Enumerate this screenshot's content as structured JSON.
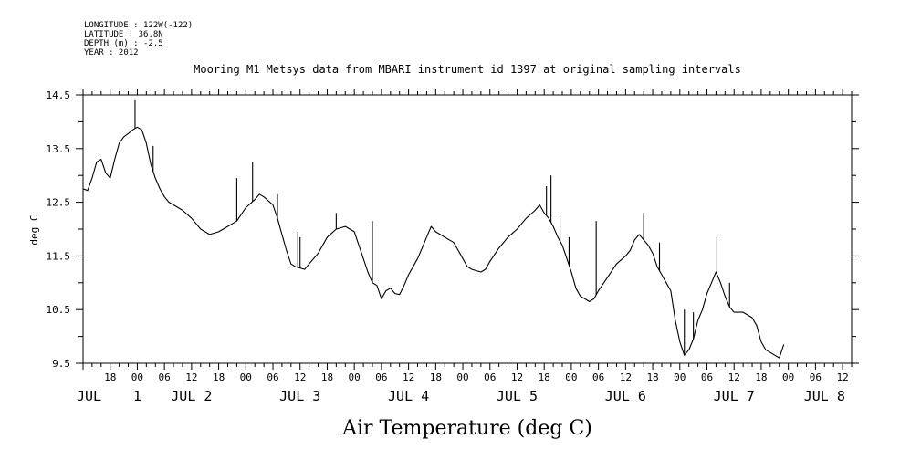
{
  "header": {
    "lines": [
      "LONGITUDE : 122W(-122)",
      "LATITUDE : 36.8N",
      "DEPTH (m) : -2.5",
      "YEAR : 2012"
    ]
  },
  "chart_data": {
    "type": "line",
    "title": "Mooring M1 Metsys data from MBARI instrument id 1397 at original sampling intervals",
    "xlabel": "Air Temperature (deg C)",
    "ylabel": "deg C",
    "ylim": [
      9.5,
      14.5
    ],
    "yticks": [
      9.5,
      10.5,
      11.5,
      12.5,
      13.5,
      14.5
    ],
    "ytick_labels": [
      "9.5",
      "10.5",
      "11.5",
      "12.5",
      "13.5",
      "14.5"
    ],
    "xlim_hours": [
      -12,
      158
    ],
    "hour_ticks": [
      {
        "h": -6,
        "label": "18"
      },
      {
        "h": 0,
        "label": "00"
      },
      {
        "h": 6,
        "label": "06"
      },
      {
        "h": 12,
        "label": "12"
      },
      {
        "h": 18,
        "label": "18"
      },
      {
        "h": 24,
        "label": "00"
      },
      {
        "h": 30,
        "label": "06"
      },
      {
        "h": 36,
        "label": "12"
      },
      {
        "h": 42,
        "label": "18"
      },
      {
        "h": 48,
        "label": "00"
      },
      {
        "h": 54,
        "label": "06"
      },
      {
        "h": 60,
        "label": "12"
      },
      {
        "h": 66,
        "label": "18"
      },
      {
        "h": 72,
        "label": "00"
      },
      {
        "h": 78,
        "label": "06"
      },
      {
        "h": 84,
        "label": "12"
      },
      {
        "h": 90,
        "label": "18"
      },
      {
        "h": 96,
        "label": "00"
      },
      {
        "h": 102,
        "label": "06"
      },
      {
        "h": 108,
        "label": "12"
      },
      {
        "h": 114,
        "label": "18"
      },
      {
        "h": 120,
        "label": "00"
      },
      {
        "h": 126,
        "label": "06"
      },
      {
        "h": 132,
        "label": "12"
      },
      {
        "h": 138,
        "label": "18"
      },
      {
        "h": 144,
        "label": "00"
      },
      {
        "h": 150,
        "label": "06"
      },
      {
        "h": 156,
        "label": "12"
      }
    ],
    "day_labels": [
      {
        "h": -12,
        "label": "JUL"
      },
      {
        "h": 0,
        "label": "1"
      },
      {
        "h": 12,
        "label": "JUL 2"
      },
      {
        "h": 36,
        "label": "JUL 3"
      },
      {
        "h": 60,
        "label": "JUL 4"
      },
      {
        "h": 84,
        "label": "JUL 5"
      },
      {
        "h": 108,
        "label": "JUL 6"
      },
      {
        "h": 132,
        "label": "JUL 7"
      },
      {
        "h": 152,
        "label": "JUL 8"
      }
    ],
    "series": [
      {
        "color": "#000000",
        "points": [
          [
            -12,
            12.75
          ],
          [
            -11,
            12.72
          ],
          [
            -10,
            12.95
          ],
          [
            -9,
            13.25
          ],
          [
            -8,
            13.3
          ],
          [
            -7,
            13.05
          ],
          [
            -6,
            12.95
          ],
          [
            -5,
            13.3
          ],
          [
            -4,
            13.6
          ],
          [
            -3,
            13.72
          ],
          [
            -2,
            13.78
          ],
          [
            -1,
            13.85
          ],
          [
            0,
            13.9
          ],
          [
            1,
            13.85
          ],
          [
            2,
            13.6
          ],
          [
            3,
            13.2
          ],
          [
            4,
            12.95
          ],
          [
            5,
            12.75
          ],
          [
            6,
            12.6
          ],
          [
            7,
            12.5
          ],
          [
            8,
            12.45
          ],
          [
            10,
            12.35
          ],
          [
            12,
            12.2
          ],
          [
            14,
            12.0
          ],
          [
            16,
            11.9
          ],
          [
            18,
            11.95
          ],
          [
            20,
            12.05
          ],
          [
            22,
            12.15
          ],
          [
            24,
            12.4
          ],
          [
            26,
            12.55
          ],
          [
            27,
            12.65
          ],
          [
            28,
            12.6
          ],
          [
            30,
            12.45
          ],
          [
            31,
            12.2
          ],
          [
            32,
            11.9
          ],
          [
            33,
            11.6
          ],
          [
            34,
            11.35
          ],
          [
            35,
            11.3
          ],
          [
            37,
            11.25
          ],
          [
            38,
            11.35
          ],
          [
            40,
            11.55
          ],
          [
            42,
            11.85
          ],
          [
            44,
            12.0
          ],
          [
            46,
            12.05
          ],
          [
            48,
            11.95
          ],
          [
            49,
            11.7
          ],
          [
            50,
            11.45
          ],
          [
            51,
            11.2
          ],
          [
            52,
            11.0
          ],
          [
            53,
            10.95
          ],
          [
            54,
            10.7
          ],
          [
            55,
            10.85
          ],
          [
            56,
            10.9
          ],
          [
            57,
            10.8
          ],
          [
            58,
            10.78
          ],
          [
            59,
            10.95
          ],
          [
            60,
            11.15
          ],
          [
            62,
            11.45
          ],
          [
            63,
            11.65
          ],
          [
            64,
            11.85
          ],
          [
            65,
            12.05
          ],
          [
            66,
            11.95
          ],
          [
            67,
            11.9
          ],
          [
            68,
            11.85
          ],
          [
            69,
            11.8
          ],
          [
            70,
            11.75
          ],
          [
            71,
            11.6
          ],
          [
            72,
            11.45
          ],
          [
            73,
            11.3
          ],
          [
            74,
            11.25
          ],
          [
            76,
            11.2
          ],
          [
            77,
            11.25
          ],
          [
            78,
            11.4
          ],
          [
            80,
            11.65
          ],
          [
            82,
            11.85
          ],
          [
            84,
            12.0
          ],
          [
            86,
            12.2
          ],
          [
            88,
            12.35
          ],
          [
            89,
            12.45
          ],
          [
            90,
            12.3
          ],
          [
            91,
            12.2
          ],
          [
            92,
            12.05
          ],
          [
            93,
            11.85
          ],
          [
            94,
            11.7
          ],
          [
            95,
            11.45
          ],
          [
            96,
            11.2
          ],
          [
            97,
            10.9
          ],
          [
            98,
            10.75
          ],
          [
            99,
            10.7
          ],
          [
            100,
            10.65
          ],
          [
            101,
            10.7
          ],
          [
            102,
            10.85
          ],
          [
            104,
            11.1
          ],
          [
            106,
            11.35
          ],
          [
            108,
            11.5
          ],
          [
            109,
            11.6
          ],
          [
            110,
            11.8
          ],
          [
            111,
            11.9
          ],
          [
            112,
            11.8
          ],
          [
            113,
            11.7
          ],
          [
            114,
            11.55
          ],
          [
            115,
            11.3
          ],
          [
            116,
            11.15
          ],
          [
            117,
            11.0
          ],
          [
            118,
            10.85
          ],
          [
            119,
            10.3
          ],
          [
            120,
            9.9
          ],
          [
            121,
            9.65
          ],
          [
            122,
            9.75
          ],
          [
            123,
            9.95
          ],
          [
            124,
            10.3
          ],
          [
            125,
            10.5
          ],
          [
            126,
            10.8
          ],
          [
            127,
            11.0
          ],
          [
            128,
            11.2
          ],
          [
            129,
            11.0
          ],
          [
            130,
            10.75
          ],
          [
            131,
            10.55
          ],
          [
            132,
            10.45
          ],
          [
            134,
            10.45
          ],
          [
            136,
            10.35
          ],
          [
            137,
            10.2
          ],
          [
            138,
            9.9
          ],
          [
            139,
            9.75
          ],
          [
            140,
            9.7
          ],
          [
            141,
            9.65
          ],
          [
            142,
            9.6
          ],
          [
            143,
            9.85
          ]
        ],
        "spikes": [
          [
            -0.5,
            14.4
          ],
          [
            3.5,
            13.55
          ],
          [
            22,
            12.95
          ],
          [
            25.5,
            13.25
          ],
          [
            31,
            12.65
          ],
          [
            35.5,
            11.95
          ],
          [
            36,
            11.85
          ],
          [
            44,
            12.3
          ],
          [
            52,
            12.15
          ],
          [
            90.5,
            12.8
          ],
          [
            91.5,
            13.0
          ],
          [
            93.5,
            12.2
          ],
          [
            95.5,
            11.85
          ],
          [
            101.5,
            12.15
          ],
          [
            112,
            12.3
          ],
          [
            115.5,
            11.75
          ],
          [
            121,
            10.5
          ],
          [
            123,
            10.45
          ],
          [
            128.2,
            11.85
          ],
          [
            131,
            11.0
          ]
        ]
      }
    ]
  }
}
